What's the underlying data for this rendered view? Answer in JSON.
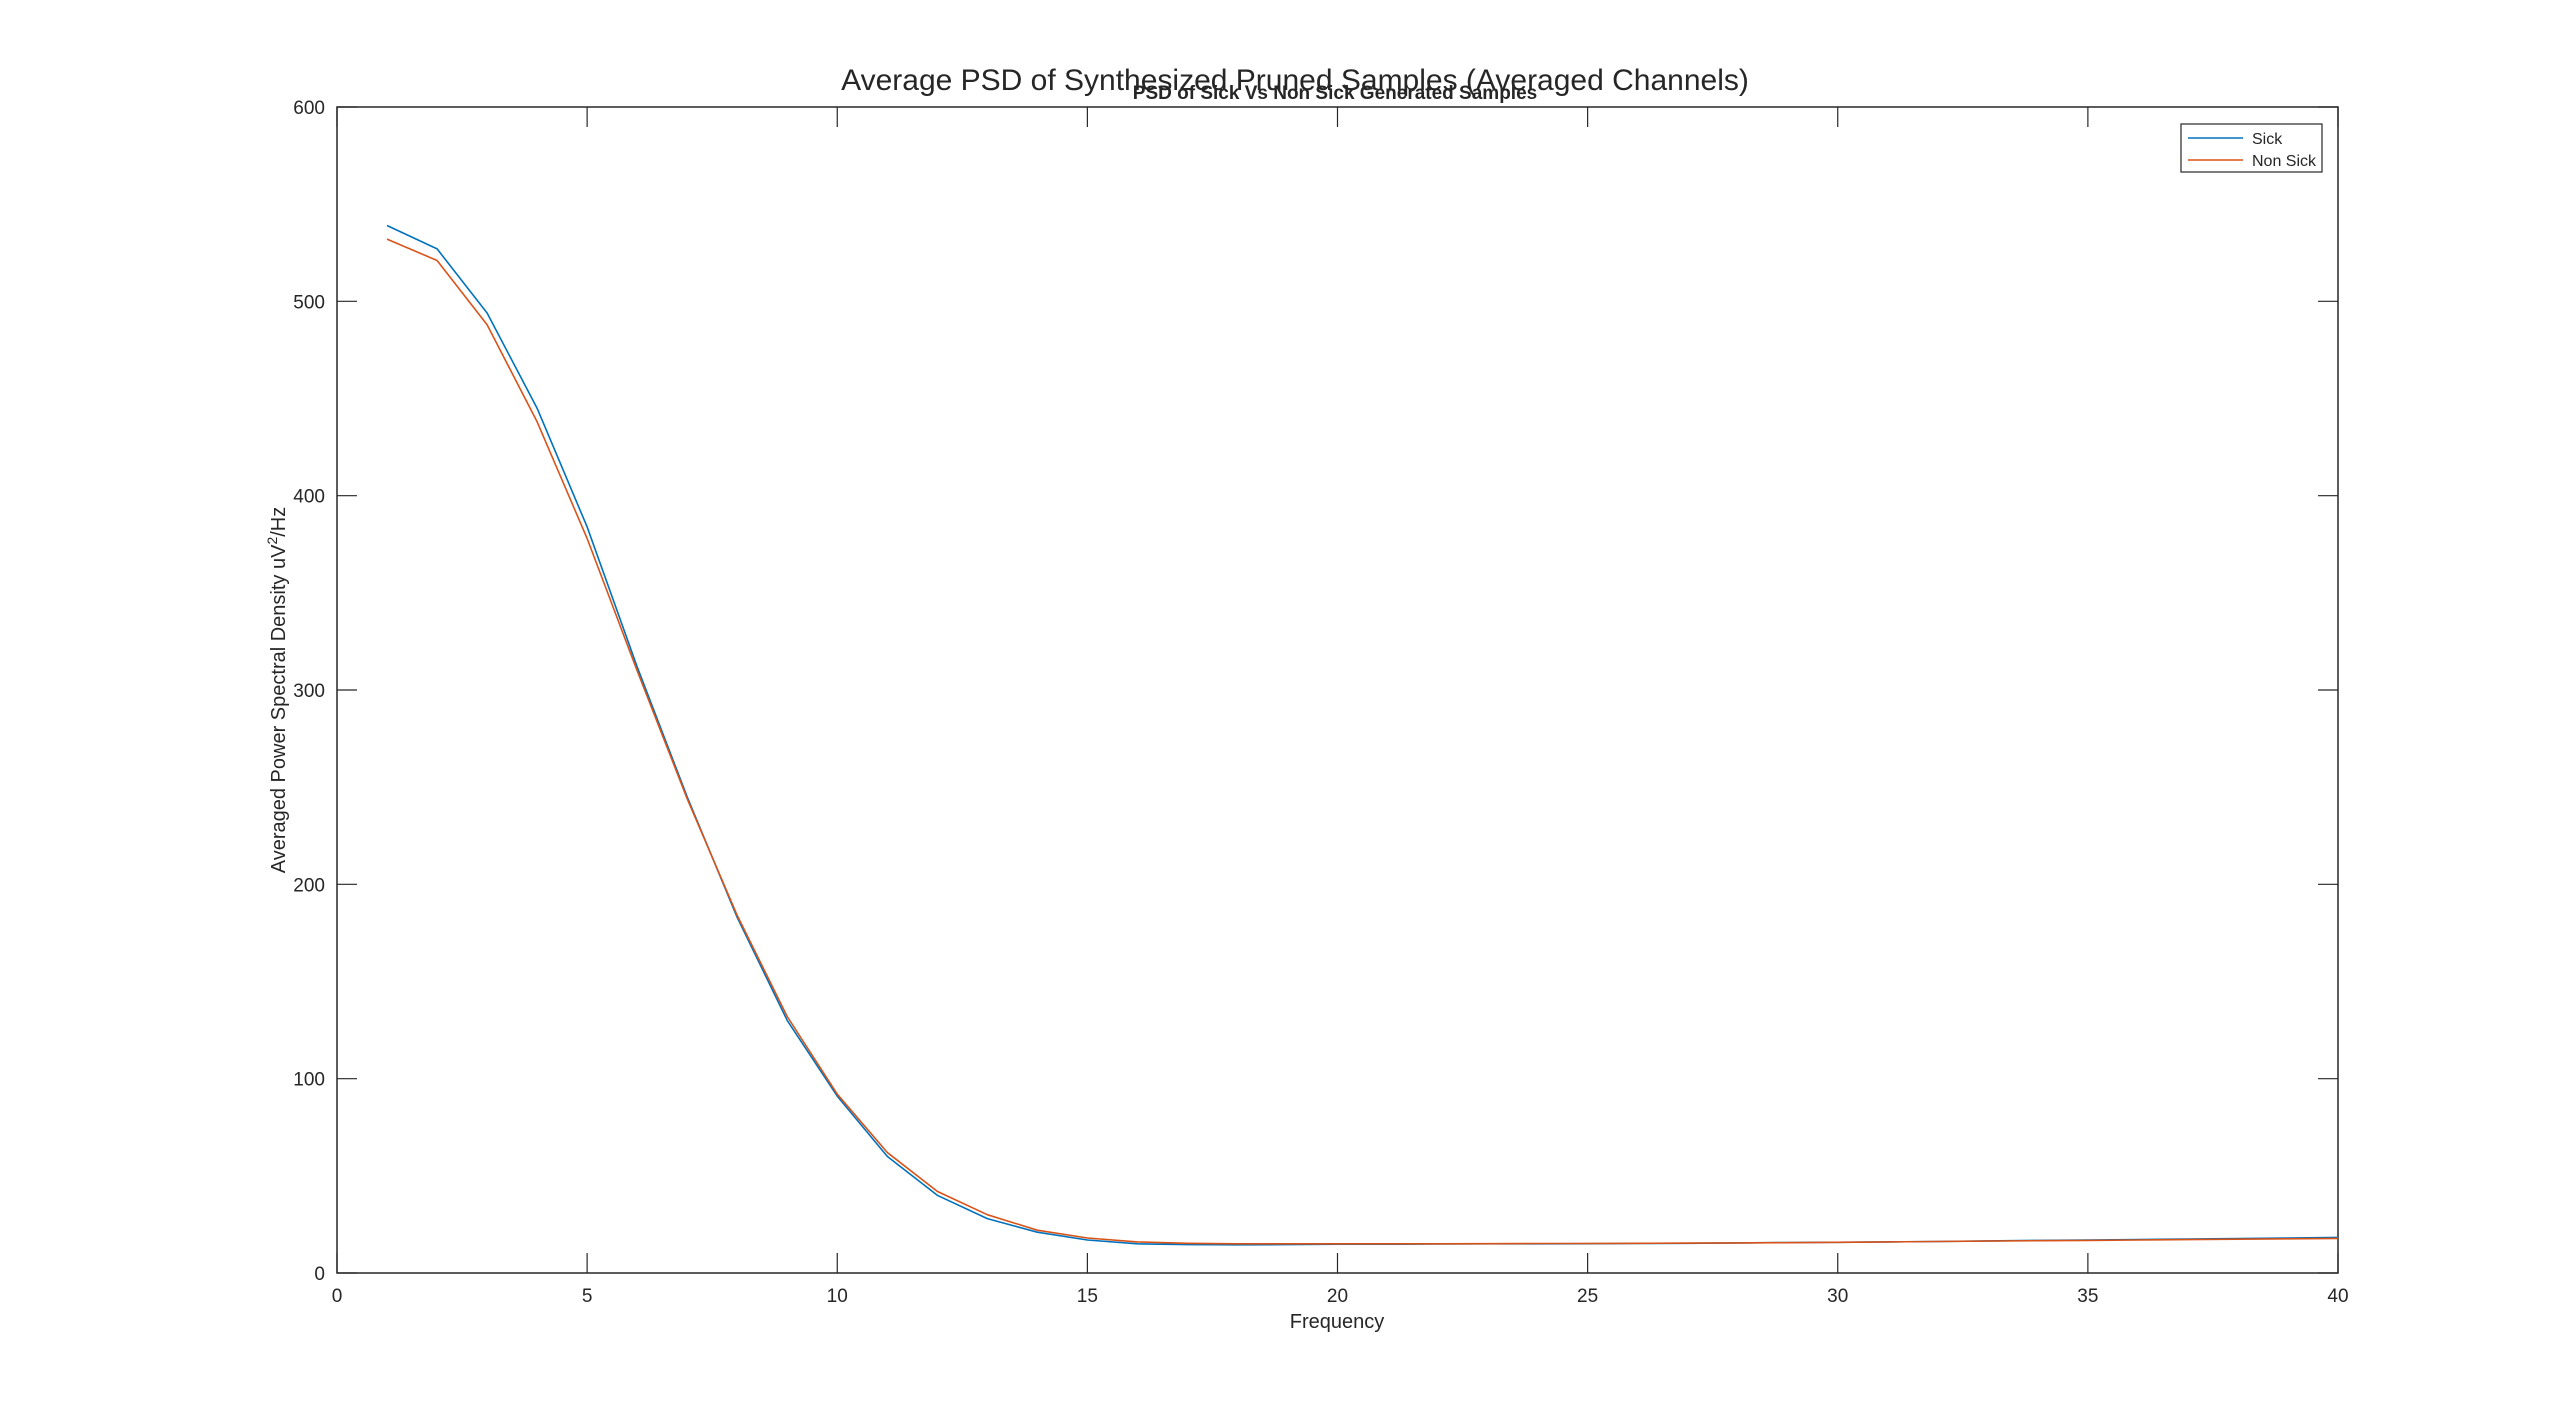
{
  "window": {
    "main_title": "Average PSD of Synthesized Pruned Samples (Averaged Channels)"
  },
  "chart_data": {
    "type": "line",
    "title": "PSD of Sick Vs Non Sick Generated Samples",
    "xlabel": "Frequency",
    "ylabel": "Averaged Power Spectral Density uV",
    "ylabel_sup": "2",
    "ylabel_suffix": "/Hz",
    "xlim": [
      0,
      40
    ],
    "ylim": [
      0,
      600
    ],
    "xticks": [
      0,
      5,
      10,
      15,
      20,
      25,
      30,
      35,
      40
    ],
    "yticks": [
      0,
      100,
      200,
      300,
      400,
      500,
      600
    ],
    "grid": false,
    "legend_position": "top-right",
    "x": [
      1,
      2,
      3,
      4,
      5,
      6,
      7,
      8,
      9,
      10,
      11,
      12,
      13,
      14,
      15,
      16,
      17,
      18,
      19,
      20,
      21,
      22,
      23,
      24,
      25,
      26,
      27,
      28,
      29,
      30,
      31,
      32,
      33,
      34,
      35,
      36,
      37,
      38,
      39,
      40
    ],
    "series": [
      {
        "name": "Sick",
        "color": "#0072BD",
        "values": [
          539,
          527,
          494,
          445,
          384,
          312,
          245,
          183,
          130,
          91,
          60,
          40,
          28,
          21,
          17,
          15,
          14.6,
          14.5,
          14.6,
          14.8,
          14.8,
          14.9,
          15,
          15,
          15.1,
          15.2,
          15.3,
          15.5,
          15.7,
          15.8,
          16,
          16.2,
          16.5,
          16.8,
          17,
          17.2,
          17.5,
          17.7,
          18,
          18.3
        ]
      },
      {
        "name": "Non Sick",
        "color": "#D95319",
        "values": [
          532,
          521,
          488,
          438,
          378,
          310,
          244,
          184,
          132,
          92,
          62,
          42,
          30,
          22,
          18,
          16,
          15.3,
          15,
          15,
          15,
          15,
          15,
          15.1,
          15.2,
          15.2,
          15.3,
          15.4,
          15.5,
          15.6,
          15.8,
          16,
          16.2,
          16.4,
          16.6,
          16.8,
          17,
          17.2,
          17.4,
          17.6,
          17.8
        ]
      }
    ]
  }
}
